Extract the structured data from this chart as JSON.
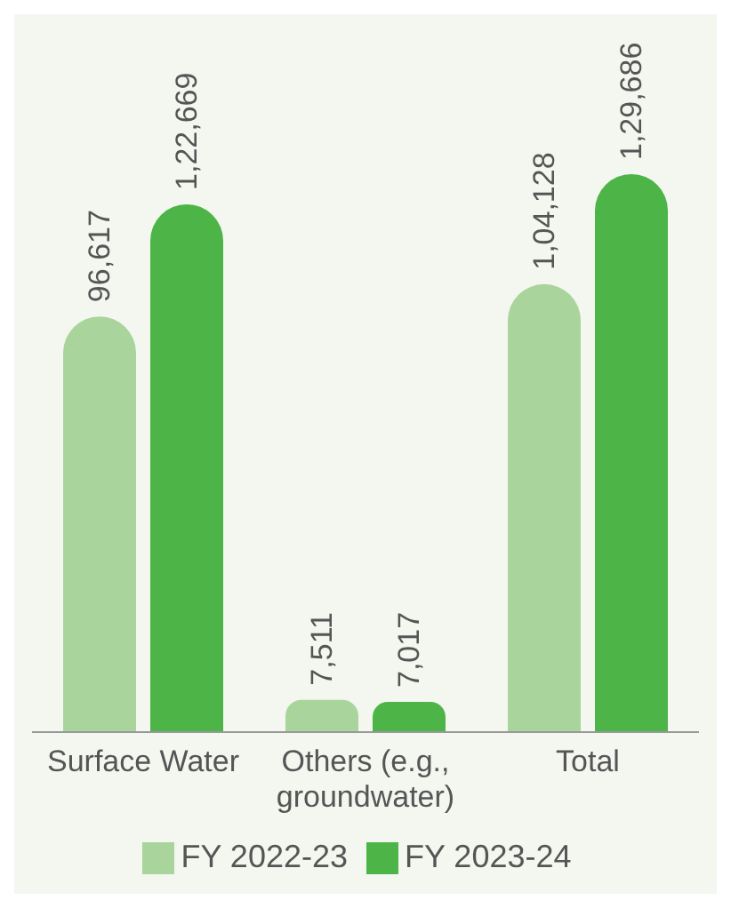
{
  "chart_data": {
    "type": "bar",
    "categories": [
      "Surface Water",
      "Others (e.g., groundwater)",
      "Total"
    ],
    "series": [
      {
        "name": "FY 2022-23",
        "color": "#a9d49c",
        "values": [
          96617,
          7511,
          104128
        ],
        "value_labels": [
          "96,617",
          "7,511",
          "1,04,128"
        ]
      },
      {
        "name": "FY 2023-24",
        "color": "#4db548",
        "values": [
          122669,
          7017,
          129686
        ],
        "value_labels": [
          "1,22,669",
          "7,017",
          "1,29,686"
        ]
      }
    ],
    "legend": "bottom",
    "grid": false
  }
}
